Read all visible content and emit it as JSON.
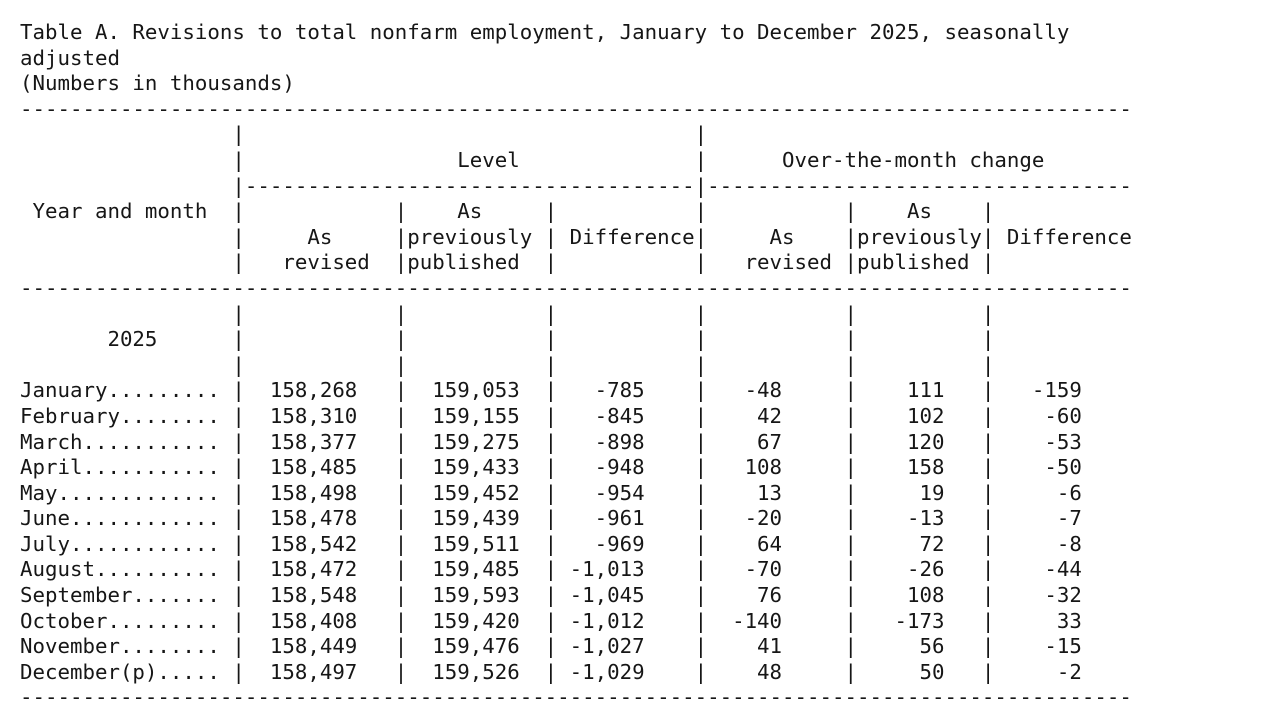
{
  "document": {
    "title": "Table A. Revisions to total nonfarm employment, January to December 2025, seasonally adjusted",
    "units_note": "(Numbers in thousands)"
  },
  "table": {
    "stub_header": "Year and month",
    "level_group_header": "Level",
    "otm_group_header": "Over-the-month change",
    "sub_headers": {
      "as_revised_line1": "As",
      "as_revised_line2": "revised",
      "as_previously_published_line1": "As",
      "as_previously_published_line2": "previously",
      "as_previously_published_line3": "published",
      "difference": "Difference"
    },
    "year_label": "2025",
    "rows": [
      {
        "month": "January",
        "level_as_revised": "158,268",
        "level_as_previously_published": "159,053",
        "level_difference": "-785",
        "otm_as_revised": "-48",
        "otm_as_previously_published": "111",
        "otm_difference": "-159"
      },
      {
        "month": "February",
        "level_as_revised": "158,310",
        "level_as_previously_published": "159,155",
        "level_difference": "-845",
        "otm_as_revised": "42",
        "otm_as_previously_published": "102",
        "otm_difference": "-60"
      },
      {
        "month": "March",
        "level_as_revised": "158,377",
        "level_as_previously_published": "159,275",
        "level_difference": "-898",
        "otm_as_revised": "67",
        "otm_as_previously_published": "120",
        "otm_difference": "-53"
      },
      {
        "month": "April",
        "level_as_revised": "158,485",
        "level_as_previously_published": "159,433",
        "level_difference": "-948",
        "otm_as_revised": "108",
        "otm_as_previously_published": "158",
        "otm_difference": "-50"
      },
      {
        "month": "May",
        "level_as_revised": "158,498",
        "level_as_previously_published": "159,452",
        "level_difference": "-954",
        "otm_as_revised": "13",
        "otm_as_previously_published": "19",
        "otm_difference": "-6"
      },
      {
        "month": "June",
        "level_as_revised": "158,478",
        "level_as_previously_published": "159,439",
        "level_difference": "-961",
        "otm_as_revised": "-20",
        "otm_as_previously_published": "-13",
        "otm_difference": "-7"
      },
      {
        "month": "July",
        "level_as_revised": "158,542",
        "level_as_previously_published": "159,511",
        "level_difference": "-969",
        "otm_as_revised": "64",
        "otm_as_previously_published": "72",
        "otm_difference": "-8"
      },
      {
        "month": "August",
        "level_as_revised": "158,472",
        "level_as_previously_published": "159,485",
        "level_difference": "-1,013",
        "otm_as_revised": "-70",
        "otm_as_previously_published": "-26",
        "otm_difference": "-44"
      },
      {
        "month": "September",
        "level_as_revised": "158,548",
        "level_as_previously_published": "159,593",
        "level_difference": "-1,045",
        "otm_as_revised": "76",
        "otm_as_previously_published": "108",
        "otm_difference": "-32"
      },
      {
        "month": "October",
        "level_as_revised": "158,408",
        "level_as_previously_published": "159,420",
        "level_difference": "-1,012",
        "otm_as_revised": "-140",
        "otm_as_previously_published": "-173",
        "otm_difference": "33"
      },
      {
        "month": "November",
        "level_as_revised": "158,449",
        "level_as_previously_published": "159,476",
        "level_difference": "-1,027",
        "otm_as_revised": "41",
        "otm_as_previously_published": "56",
        "otm_difference": "-15"
      },
      {
        "month": "December(p)",
        "level_as_revised": "158,497",
        "level_as_previously_published": "159,526",
        "level_difference": "-1,029",
        "otm_as_revised": "48",
        "otm_as_previously_published": "50",
        "otm_difference": "-2"
      }
    ]
  }
}
